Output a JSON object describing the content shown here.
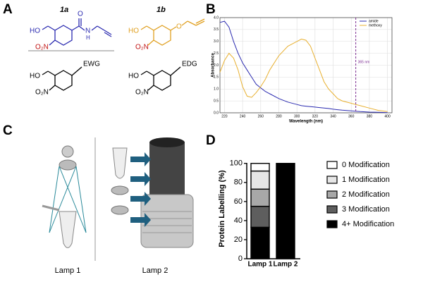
{
  "panel_a": {
    "label": "A",
    "compounds": [
      {
        "name": "1a",
        "atoms": [
          "HO",
          "O₂N",
          "O",
          "N",
          "H"
        ]
      },
      {
        "name": "1b",
        "atoms": [
          "HO",
          "O₂N",
          "O"
        ]
      },
      {
        "atoms": [
          "HO",
          "O₂N"
        ],
        "group": "EWG"
      },
      {
        "atoms": [
          "HO",
          "O₂N"
        ],
        "group": "EDG"
      }
    ]
  },
  "panel_c": {
    "label": "C",
    "lamps": [
      "Lamp 1",
      "Lamp 2"
    ]
  },
  "chart_data": [
    {
      "type": "line",
      "panel_label": "B",
      "x_label": "Wavelength (nm)",
      "y_label": "Absorbance",
      "x": [
        215,
        220,
        225,
        230,
        235,
        240,
        245,
        250,
        255,
        260,
        265,
        270,
        280,
        290,
        300,
        305,
        310,
        315,
        320,
        325,
        330,
        335,
        340,
        345,
        350,
        360,
        370,
        380,
        390,
        400
      ],
      "series": [
        {
          "name": "amide",
          "color": "#2b2bb0",
          "values": [
            3.8,
            3.85,
            3.6,
            3.0,
            2.5,
            2.1,
            1.8,
            1.5,
            1.2,
            1.05,
            0.9,
            0.8,
            0.6,
            0.45,
            0.35,
            0.3,
            0.28,
            0.26,
            0.24,
            0.22,
            0.2,
            0.18,
            0.15,
            0.13,
            0.11,
            0.08,
            0.05,
            0.03,
            0.02,
            0.01
          ]
        },
        {
          "name": "methoxy",
          "color": "#e8b030",
          "values": [
            1.7,
            2.2,
            2.5,
            2.3,
            1.8,
            1.1,
            0.7,
            0.65,
            0.85,
            1.1,
            1.4,
            1.8,
            2.4,
            2.8,
            3.0,
            3.1,
            3.05,
            2.8,
            2.3,
            1.8,
            1.3,
            1.0,
            0.8,
            0.6,
            0.5,
            0.4,
            0.3,
            0.2,
            0.1,
            0.05
          ]
        }
      ],
      "xlim": [
        215,
        405
      ],
      "xticks": [
        220,
        240,
        260,
        280,
        300,
        320,
        340,
        360,
        380,
        400
      ],
      "ylim": [
        0,
        4
      ],
      "yticks": [
        {
          "value": 0,
          "label": "0.0"
        },
        0.5,
        {
          "value": 1,
          "label": "1.0"
        },
        1.5,
        {
          "value": 2,
          "label": "2.0"
        },
        2.5,
        {
          "value": 3,
          "label": "3.0"
        },
        3.5,
        {
          "value": 4,
          "label": "4.0"
        }
      ],
      "grid": true,
      "legend": "upper right",
      "annotations": [
        {
          "text": "365 nm",
          "x": 365,
          "color": "#7a2a90"
        }
      ]
    },
    {
      "type": "bar",
      "stacked": true,
      "panel_label": "D",
      "y_label": "Protein Labelling (%)",
      "categories": [
        "Lamp 1",
        "Lamp 2"
      ],
      "series": [
        {
          "name": "0 Modification",
          "color": "#ffffff",
          "values": [
            8,
            0
          ]
        },
        {
          "name": "1 Modification",
          "color": "#e6e6e6",
          "values": [
            19,
            0
          ]
        },
        {
          "name": "2 Modification",
          "color": "#a8a8a8",
          "values": [
            18,
            0
          ]
        },
        {
          "name": "3 Modification",
          "color": "#5e5e5e",
          "values": [
            22,
            0
          ]
        },
        {
          "name": "4+ Modification",
          "color": "#000000",
          "values": [
            33,
            100
          ]
        }
      ],
      "ylim": [
        0,
        105
      ],
      "yticks": [
        0,
        20,
        40,
        60,
        80,
        100
      ],
      "legend": "right"
    }
  ]
}
